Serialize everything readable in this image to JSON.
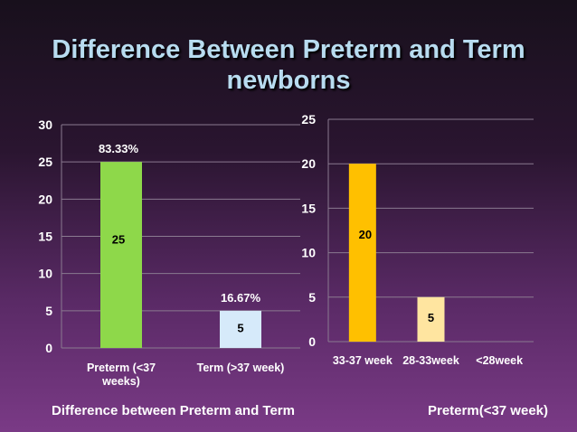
{
  "title_line1": "Difference Between Preterm and Term",
  "title_line2": "newborns",
  "caption_left": "Difference between Preterm and Term",
  "caption_right": "Preterm(<37 week)",
  "chart_data": [
    {
      "type": "bar",
      "categories": [
        [
          "Preterm (<37",
          "weeks)"
        ],
        [
          "Term (>37 week)"
        ]
      ],
      "values": [
        25,
        5
      ],
      "value_labels": [
        "25",
        "5"
      ],
      "annotations": [
        "83.33%",
        "16.67%"
      ],
      "colors": [
        "#8ed84a",
        "#d6eafa"
      ],
      "ylim": [
        0,
        30
      ],
      "yticks": [
        0,
        5,
        10,
        15,
        20,
        25,
        30
      ],
      "grid": true
    },
    {
      "type": "bar",
      "categories": [
        [
          "33-37 week"
        ],
        [
          "28-33week"
        ],
        [
          "<28week"
        ]
      ],
      "values": [
        20,
        5,
        0
      ],
      "value_labels": [
        "20",
        "5",
        ""
      ],
      "annotations": [
        "",
        "",
        ""
      ],
      "colors": [
        "#ffc000",
        "#ffe5a0",
        "#ffc000"
      ],
      "ylim": [
        0,
        25
      ],
      "yticks": [
        0,
        5,
        10,
        15,
        20,
        25
      ],
      "grid": true
    }
  ]
}
